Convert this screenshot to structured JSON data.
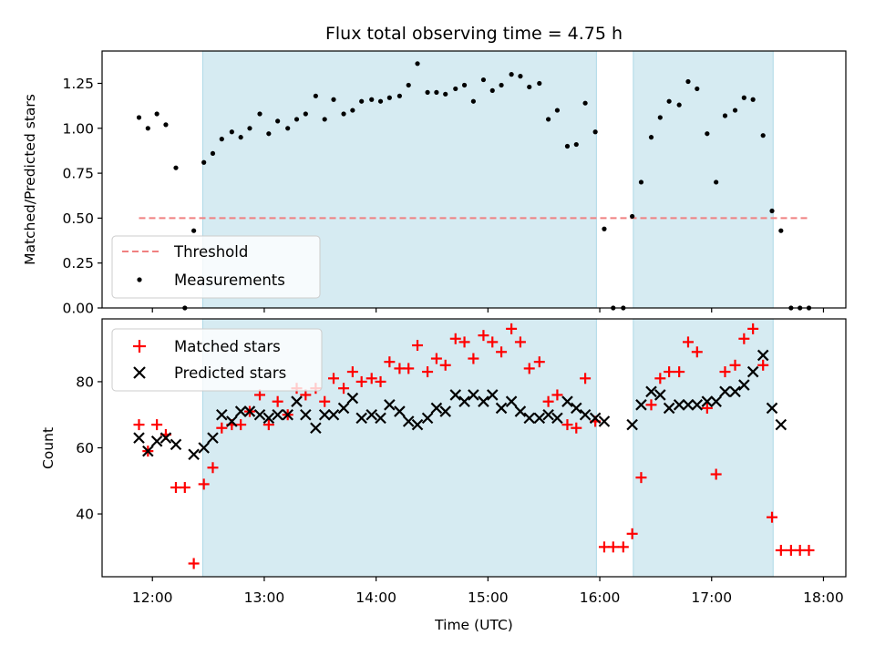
{
  "chart_data": [
    {
      "type": "scatter",
      "panel": "top",
      "title": "Flux total observing time = 4.75 h",
      "ylabel": "Matched/Predicted stars",
      "xlim": [
        11.55,
        18.2
      ],
      "ylim": [
        0,
        1.43
      ],
      "yticks": [
        0.0,
        0.25,
        0.5,
        0.75,
        1.0,
        1.25
      ],
      "ytick_labels": [
        "0.00",
        "0.25",
        "0.50",
        "0.75",
        "1.00",
        "1.25"
      ],
      "shaded_spans": [
        [
          12.45,
          15.97
        ],
        [
          16.3,
          17.55
        ]
      ],
      "threshold": {
        "name": "Threshold",
        "value": 0.5,
        "x_range": [
          11.88,
          17.88
        ],
        "color": "#f08080"
      },
      "legend": {
        "position": "lower-left",
        "entries": [
          "Threshold",
          "Measurements"
        ]
      },
      "series": [
        {
          "name": "Measurements",
          "color": "#000000",
          "points": [
            [
              11.88,
              1.06
            ],
            [
              11.96,
              1.0
            ],
            [
              12.04,
              1.08
            ],
            [
              12.12,
              1.02
            ],
            [
              12.21,
              0.78
            ],
            [
              12.29,
              0.0
            ],
            [
              12.37,
              0.43
            ],
            [
              12.46,
              0.81
            ],
            [
              12.54,
              0.86
            ],
            [
              12.62,
              0.94
            ],
            [
              12.71,
              0.98
            ],
            [
              12.79,
              0.95
            ],
            [
              12.87,
              1.0
            ],
            [
              12.96,
              1.08
            ],
            [
              13.04,
              0.97
            ],
            [
              13.12,
              1.04
            ],
            [
              13.21,
              1.0
            ],
            [
              13.29,
              1.05
            ],
            [
              13.37,
              1.08
            ],
            [
              13.46,
              1.18
            ],
            [
              13.54,
              1.05
            ],
            [
              13.62,
              1.16
            ],
            [
              13.71,
              1.08
            ],
            [
              13.79,
              1.1
            ],
            [
              13.87,
              1.15
            ],
            [
              13.96,
              1.16
            ],
            [
              14.04,
              1.15
            ],
            [
              14.12,
              1.17
            ],
            [
              14.21,
              1.18
            ],
            [
              14.29,
              1.24
            ],
            [
              14.37,
              1.36
            ],
            [
              14.46,
              1.2
            ],
            [
              14.54,
              1.2
            ],
            [
              14.62,
              1.19
            ],
            [
              14.71,
              1.22
            ],
            [
              14.79,
              1.24
            ],
            [
              14.87,
              1.15
            ],
            [
              14.96,
              1.27
            ],
            [
              15.04,
              1.21
            ],
            [
              15.12,
              1.24
            ],
            [
              15.21,
              1.3
            ],
            [
              15.29,
              1.29
            ],
            [
              15.37,
              1.23
            ],
            [
              15.46,
              1.25
            ],
            [
              15.54,
              1.05
            ],
            [
              15.62,
              1.1
            ],
            [
              15.71,
              0.9
            ],
            [
              15.79,
              0.91
            ],
            [
              15.87,
              1.14
            ],
            [
              15.96,
              0.98
            ],
            [
              16.04,
              0.44
            ],
            [
              16.12,
              0.0
            ],
            [
              16.21,
              0.0
            ],
            [
              16.29,
              0.51
            ],
            [
              16.37,
              0.7
            ],
            [
              16.46,
              0.95
            ],
            [
              16.54,
              1.06
            ],
            [
              16.62,
              1.15
            ],
            [
              16.71,
              1.13
            ],
            [
              16.79,
              1.26
            ],
            [
              16.87,
              1.22
            ],
            [
              16.96,
              0.97
            ],
            [
              17.04,
              0.7
            ],
            [
              17.12,
              1.07
            ],
            [
              17.21,
              1.1
            ],
            [
              17.29,
              1.17
            ],
            [
              17.37,
              1.16
            ],
            [
              17.46,
              0.96
            ],
            [
              17.54,
              0.54
            ],
            [
              17.62,
              0.43
            ],
            [
              17.71,
              0.0
            ],
            [
              17.79,
              0.0
            ],
            [
              17.87,
              0.0
            ]
          ]
        }
      ]
    },
    {
      "type": "scatter",
      "panel": "bottom",
      "xlabel": "Time (UTC)",
      "ylabel": "Count",
      "xlim": [
        11.55,
        18.2
      ],
      "ylim": [
        21,
        99
      ],
      "xticks": [
        12,
        13,
        14,
        15,
        16,
        17,
        18
      ],
      "xtick_labels": [
        "12:00",
        "13:00",
        "14:00",
        "15:00",
        "16:00",
        "17:00",
        "18:00"
      ],
      "yticks": [
        40,
        60,
        80
      ],
      "ytick_labels": [
        "40",
        "60",
        "80"
      ],
      "shaded_spans": [
        [
          12.45,
          15.97
        ],
        [
          16.3,
          17.55
        ]
      ],
      "legend": {
        "position": "top-left",
        "entries": [
          "Matched stars",
          "Predicted stars"
        ]
      },
      "series": [
        {
          "name": "Matched stars",
          "marker": "plus",
          "color": "#ff0000",
          "points": [
            [
              11.88,
              67
            ],
            [
              11.96,
              59
            ],
            [
              12.04,
              67
            ],
            [
              12.12,
              64
            ],
            [
              12.21,
              48
            ],
            [
              12.29,
              48
            ],
            [
              12.37,
              25
            ],
            [
              12.46,
              49
            ],
            [
              12.54,
              54
            ],
            [
              12.62,
              66
            ],
            [
              12.71,
              67
            ],
            [
              12.79,
              67
            ],
            [
              12.87,
              71
            ],
            [
              12.96,
              76
            ],
            [
              13.04,
              67
            ],
            [
              13.12,
              74
            ],
            [
              13.21,
              70
            ],
            [
              13.29,
              78
            ],
            [
              13.37,
              76
            ],
            [
              13.46,
              78
            ],
            [
              13.54,
              74
            ],
            [
              13.62,
              81
            ],
            [
              13.71,
              78
            ],
            [
              13.79,
              83
            ],
            [
              13.87,
              80
            ],
            [
              13.96,
              81
            ],
            [
              14.04,
              80
            ],
            [
              14.12,
              86
            ],
            [
              14.21,
              84
            ],
            [
              14.29,
              84
            ],
            [
              14.37,
              91
            ],
            [
              14.46,
              83
            ],
            [
              14.54,
              87
            ],
            [
              14.62,
              85
            ],
            [
              14.71,
              93
            ],
            [
              14.79,
              92
            ],
            [
              14.87,
              87
            ],
            [
              14.96,
              94
            ],
            [
              15.04,
              92
            ],
            [
              15.12,
              89
            ],
            [
              15.21,
              96
            ],
            [
              15.29,
              92
            ],
            [
              15.37,
              84
            ],
            [
              15.46,
              86
            ],
            [
              15.54,
              74
            ],
            [
              15.62,
              76
            ],
            [
              15.71,
              67
            ],
            [
              15.79,
              66
            ],
            [
              15.87,
              81
            ],
            [
              15.96,
              68
            ],
            [
              16.04,
              30
            ],
            [
              16.12,
              30
            ],
            [
              16.21,
              30
            ],
            [
              16.29,
              34
            ],
            [
              16.37,
              51
            ],
            [
              16.46,
              73
            ],
            [
              16.54,
              81
            ],
            [
              16.62,
              83
            ],
            [
              16.71,
              83
            ],
            [
              16.79,
              92
            ],
            [
              16.87,
              89
            ],
            [
              16.96,
              72
            ],
            [
              17.04,
              52
            ],
            [
              17.12,
              83
            ],
            [
              17.21,
              85
            ],
            [
              17.29,
              93
            ],
            [
              17.37,
              96
            ],
            [
              17.46,
              85
            ],
            [
              17.54,
              39
            ],
            [
              17.62,
              29
            ],
            [
              17.71,
              29
            ],
            [
              17.79,
              29
            ],
            [
              17.87,
              29
            ]
          ]
        },
        {
          "name": "Predicted stars",
          "marker": "x",
          "color": "#000000",
          "points": [
            [
              11.88,
              63
            ],
            [
              11.96,
              59
            ],
            [
              12.04,
              62
            ],
            [
              12.12,
              63
            ],
            [
              12.21,
              61
            ],
            [
              12.37,
              58
            ],
            [
              12.46,
              60
            ],
            [
              12.54,
              63
            ],
            [
              12.62,
              70
            ],
            [
              12.71,
              68
            ],
            [
              12.79,
              71
            ],
            [
              12.87,
              71
            ],
            [
              12.96,
              70
            ],
            [
              13.04,
              69
            ],
            [
              13.12,
              70
            ],
            [
              13.21,
              70
            ],
            [
              13.29,
              74
            ],
            [
              13.37,
              70
            ],
            [
              13.46,
              66
            ],
            [
              13.54,
              70
            ],
            [
              13.62,
              70
            ],
            [
              13.71,
              72
            ],
            [
              13.79,
              75
            ],
            [
              13.87,
              69
            ],
            [
              13.96,
              70
            ],
            [
              14.04,
              69
            ],
            [
              14.12,
              73
            ],
            [
              14.21,
              71
            ],
            [
              14.29,
              68
            ],
            [
              14.37,
              67
            ],
            [
              14.46,
              69
            ],
            [
              14.54,
              72
            ],
            [
              14.62,
              71
            ],
            [
              14.71,
              76
            ],
            [
              14.79,
              74
            ],
            [
              14.87,
              76
            ],
            [
              14.96,
              74
            ],
            [
              15.04,
              76
            ],
            [
              15.12,
              72
            ],
            [
              15.21,
              74
            ],
            [
              15.29,
              71
            ],
            [
              15.37,
              69
            ],
            [
              15.46,
              69
            ],
            [
              15.54,
              70
            ],
            [
              15.62,
              69
            ],
            [
              15.71,
              74
            ],
            [
              15.79,
              72
            ],
            [
              15.87,
              70
            ],
            [
              15.96,
              69
            ],
            [
              16.04,
              68
            ],
            [
              16.29,
              67
            ],
            [
              16.37,
              73
            ],
            [
              16.46,
              77
            ],
            [
              16.54,
              76
            ],
            [
              16.62,
              72
            ],
            [
              16.71,
              73
            ],
            [
              16.79,
              73
            ],
            [
              16.87,
              73
            ],
            [
              16.96,
              74
            ],
            [
              17.04,
              74
            ],
            [
              17.12,
              77
            ],
            [
              17.21,
              77
            ],
            [
              17.29,
              79
            ],
            [
              17.37,
              83
            ],
            [
              17.46,
              88
            ],
            [
              17.54,
              72
            ],
            [
              17.62,
              67
            ]
          ]
        }
      ]
    }
  ]
}
